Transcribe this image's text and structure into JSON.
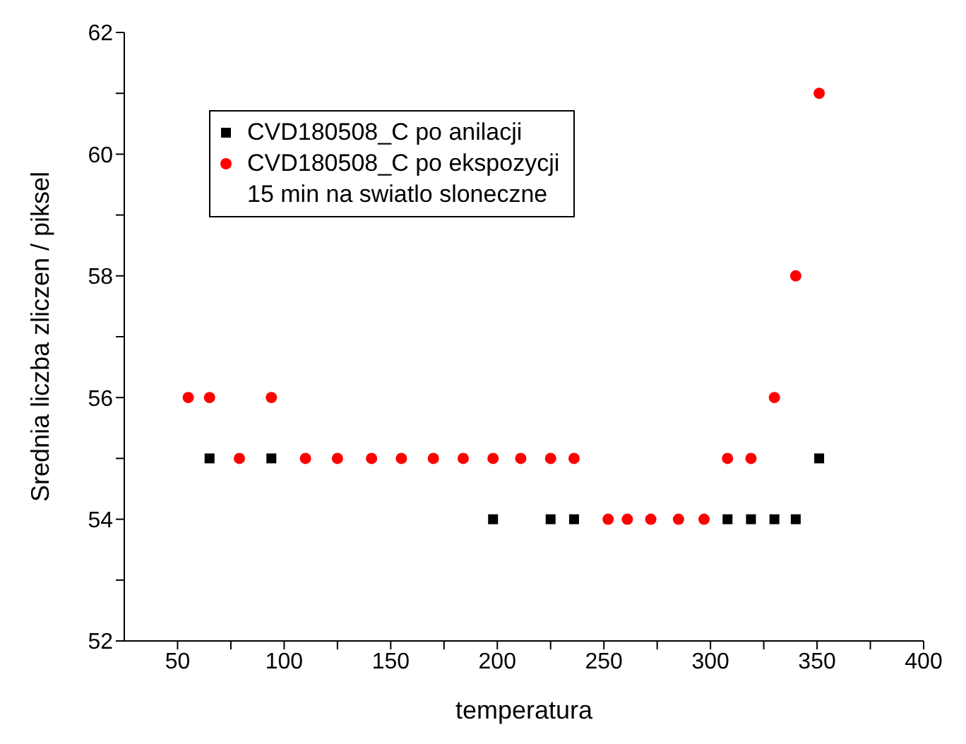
{
  "chart_data": {
    "type": "scatter",
    "xlabel": "temperatura",
    "ylabel": "Srednia liczba zliczen / piksel",
    "xlim": [
      25,
      400
    ],
    "xticks": [
      50,
      {
        "value": 75,
        "label": null
      },
      100,
      {
        "value": 125,
        "label": null
      },
      150,
      {
        "value": 175,
        "label": null
      },
      200,
      {
        "value": 225,
        "label": null
      },
      250,
      {
        "value": 275,
        "label": null
      },
      300,
      {
        "value": 325,
        "label": null
      },
      350,
      {
        "value": 375,
        "label": null
      },
      400
    ],
    "ylim": [
      52,
      62
    ],
    "yticks": [
      52,
      {
        "value": 53,
        "label": null
      },
      54,
      {
        "value": 55,
        "label": null
      },
      56,
      {
        "value": 57,
        "label": null
      },
      58,
      {
        "value": 59,
        "label": null
      },
      60,
      {
        "value": 61,
        "label": null
      },
      62
    ],
    "grid": false,
    "legend": "top left",
    "series": [
      {
        "name": "CVD180508_C po anilacji",
        "color": "#000000",
        "marker": "square",
        "x": [
          65,
          94,
          198,
          225,
          236,
          308,
          319,
          330,
          340,
          351
        ],
        "values": [
          55,
          55,
          54,
          54,
          54,
          54,
          54,
          54,
          54,
          55
        ]
      },
      {
        "name": "CVD180508_C po ekspozycji\n15 min na swiatlo sloneczne",
        "color": "#ff0000",
        "marker": "circle",
        "x": [
          55,
          65,
          79,
          94,
          110,
          125,
          141,
          155,
          170,
          184,
          198,
          211,
          225,
          236,
          252,
          261,
          272,
          285,
          297,
          308,
          319,
          330,
          340,
          351
        ],
        "values": [
          56,
          56,
          55,
          56,
          55,
          55,
          55,
          55,
          55,
          55,
          55,
          55,
          55,
          55,
          54,
          54,
          54,
          54,
          54,
          55,
          55,
          56,
          58,
          61
        ]
      }
    ]
  }
}
